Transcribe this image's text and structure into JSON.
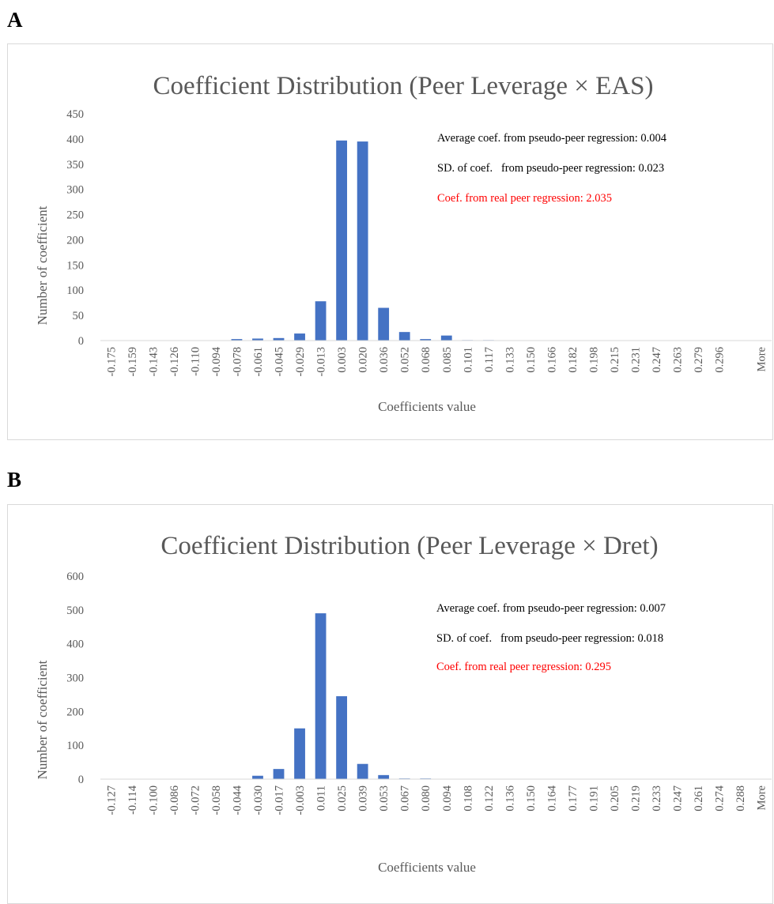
{
  "panels": [
    {
      "letter": "A"
    },
    {
      "letter": "B"
    }
  ],
  "chart_data": [
    {
      "type": "bar",
      "title": "Coefficient Distribution (Peer Leverage × EAS)",
      "xlabel": "Coefficients value",
      "ylabel": "Number of coefficient",
      "ylim": [
        0,
        450
      ],
      "yticks": [
        "0",
        "50",
        "100",
        "150",
        "200",
        "250",
        "300",
        "350",
        "400",
        "450"
      ],
      "grid": false,
      "color": "#4472c4",
      "categories": [
        "-0.175",
        "-0.159",
        "-0.143",
        "-0.126",
        "-0.110",
        "-0.094",
        "-0.078",
        "-0.061",
        "-0.045",
        "-0.029",
        "-0.013",
        "0.003",
        "0.020",
        "0.036",
        "0.052",
        "0.068",
        "0.085",
        "0.101",
        "0.117",
        "0.133",
        "0.150",
        "0.166",
        "0.182",
        "0.198",
        "0.215",
        "0.231",
        "0.247",
        "0.263",
        "0.279",
        "0.296",
        "",
        "More"
      ],
      "values": [
        0,
        0,
        0,
        0,
        0,
        0,
        3,
        4,
        5,
        14,
        78,
        397,
        395,
        65,
        17,
        3,
        10,
        1,
        1,
        0,
        0,
        0,
        0,
        0,
        0,
        0,
        0,
        0,
        0,
        0,
        0,
        0
      ],
      "annotations": [
        {
          "text": "Average coef. from pseudo-peer regression: 0.004",
          "color": "#000000"
        },
        {
          "text": "SD. of coef.   from pseudo-peer regression: 0.023",
          "color": "#000000"
        },
        {
          "text": "Coef. from real peer regression: 2.035",
          "color": "#ff0000"
        }
      ]
    },
    {
      "type": "bar",
      "title": "Coefficient Distribution (Peer Leverage × Dret)",
      "xlabel": "Coefficients value",
      "ylabel": "Number of coefficient",
      "ylim": [
        0,
        600
      ],
      "yticks": [
        "0",
        "100",
        "200",
        "300",
        "400",
        "500",
        "600"
      ],
      "grid": false,
      "color": "#4472c4",
      "categories": [
        "-0.127",
        "-0.114",
        "-0.100",
        "-0.086",
        "-0.072",
        "-0.058",
        "-0.044",
        "-0.030",
        "-0.017",
        "-0.003",
        "0.011",
        "0.025",
        "0.039",
        "0.053",
        "0.067",
        "0.080",
        "0.094",
        "0.108",
        "0.122",
        "0.136",
        "0.150",
        "0.164",
        "0.177",
        "0.191",
        "0.205",
        "0.219",
        "0.233",
        "0.247",
        "0.261",
        "0.274",
        "0.288",
        "More"
      ],
      "values": [
        0,
        0,
        0,
        0,
        1,
        0,
        0,
        10,
        30,
        150,
        490,
        245,
        45,
        12,
        2,
        2,
        1,
        1,
        0,
        0,
        0,
        0,
        0,
        0,
        0,
        0,
        0,
        0,
        0,
        0,
        0,
        0
      ],
      "annotations": [
        {
          "text": "Average coef. from pseudo-peer regression: 0.007",
          "color": "#000000"
        },
        {
          "text": "SD. of coef.   from pseudo-peer regression: 0.018",
          "color": "#000000"
        },
        {
          "text": "Coef. from real peer regression: 0.295",
          "color": "#ff0000"
        }
      ]
    }
  ]
}
